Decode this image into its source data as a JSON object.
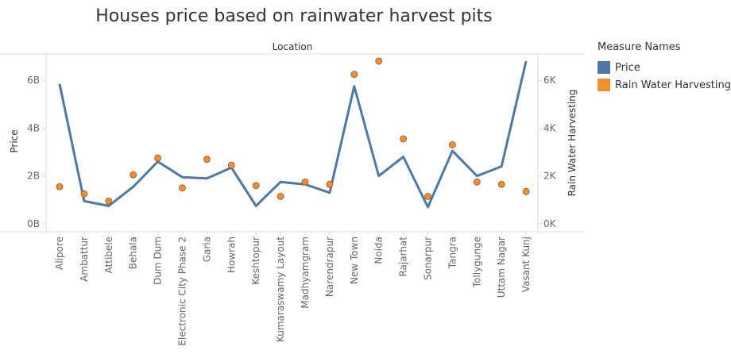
{
  "chart_data": {
    "type": "line",
    "title": "Houses price based on rainwater harvest pits",
    "column_header": "Location",
    "categories": [
      "Alipore",
      "Ambattur",
      "Attibele",
      "Behala",
      "Dum Dum",
      "Electronic City Phase 2",
      "Garia",
      "Howrah",
      "Keshtopur",
      "Kumaraswamy Layout",
      "Madhyamgram",
      "Narendrapur",
      "New Town",
      "Noida",
      "Rajarhat",
      "Sonarpur",
      "Tangra",
      "Tollygunge",
      "Uttam Nagar",
      "Vasant Kunj"
    ],
    "ylabel_left": "Price",
    "ylabel_right": "Rain Water Harvesting",
    "y_left": {
      "ticks": [
        0,
        2000000000,
        4000000000,
        6000000000
      ],
      "tick_labels": [
        "0B",
        "2B",
        "4B",
        "6B"
      ],
      "range": [
        0,
        7100000000
      ]
    },
    "y_right": {
      "ticks": [
        0,
        2000,
        4000,
        6000
      ],
      "tick_labels": [
        "0K",
        "2K",
        "4K",
        "6K"
      ],
      "range": [
        0,
        7100
      ]
    },
    "legend": {
      "title": "Measure Names",
      "placement": "right"
    },
    "series": [
      {
        "name": "Price",
        "mark": "line",
        "axis": "left",
        "color": "#4e79a7",
        "values": [
          5850000000,
          950000000,
          750000000,
          1550000000,
          2600000000,
          1950000000,
          1900000000,
          2350000000,
          750000000,
          1750000000,
          1650000000,
          1300000000,
          5750000000,
          2000000000,
          2800000000,
          700000000,
          3050000000,
          2000000000,
          2400000000,
          6800000000
        ]
      },
      {
        "name": "Rain Water Harvesting",
        "mark": "circle",
        "axis": "right",
        "color": "#f28e2b",
        "values": [
          1550,
          1250,
          950,
          2050,
          2750,
          1500,
          2700,
          2450,
          1600,
          1150,
          1750,
          1650,
          6250,
          6800,
          3550,
          1150,
          3300,
          1750,
          1650,
          1350
        ]
      }
    ]
  }
}
